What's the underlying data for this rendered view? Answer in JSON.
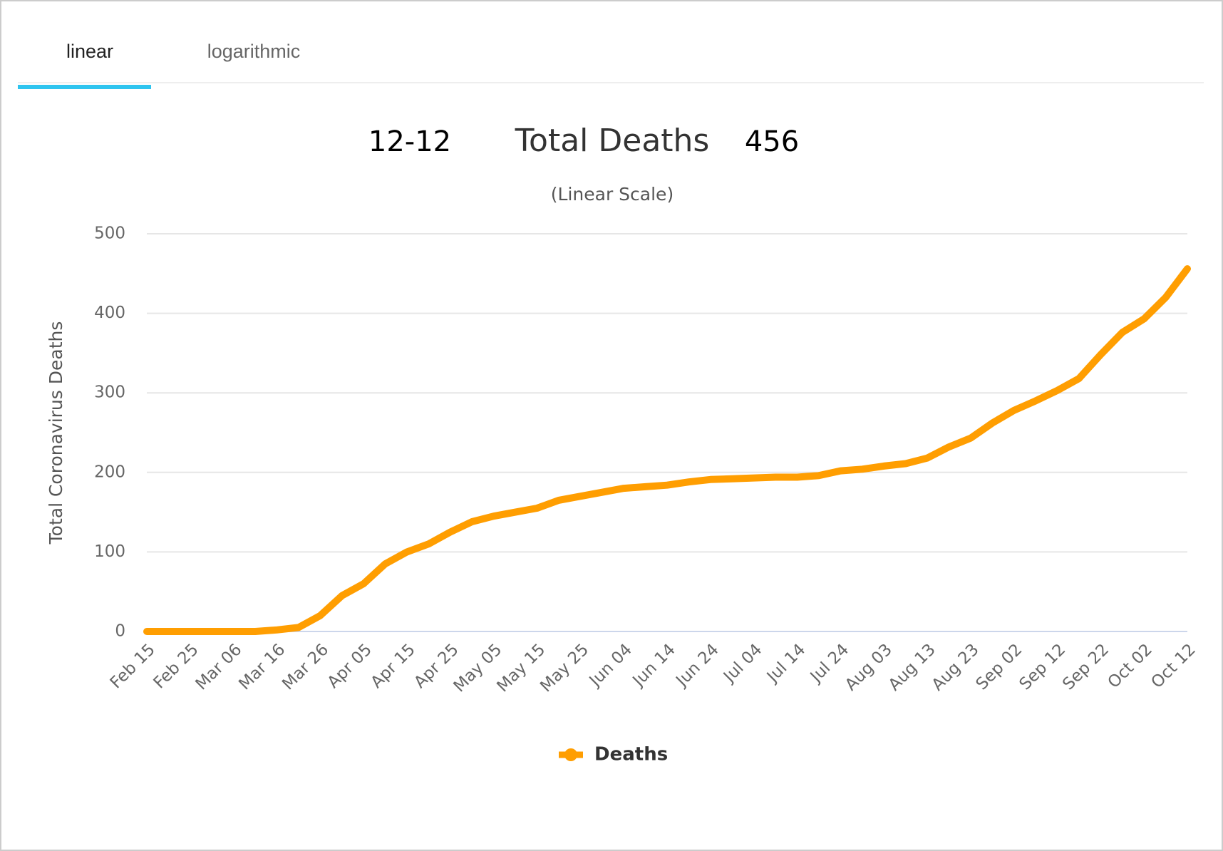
{
  "tabs": [
    "linear",
    "logarithmic"
  ],
  "chart_data": {
    "type": "line",
    "date_label": "12-12",
    "title": "Total Deaths",
    "headline_value": 456,
    "subtitle": "(Linear Scale)",
    "ylabel": "Total Coronavirus Deaths",
    "categories": [
      "Feb 15",
      null,
      "Feb 25",
      null,
      "Mar 06",
      null,
      "Mar 16",
      null,
      "Mar 26",
      null,
      "Apr 05",
      null,
      "Apr 15",
      null,
      "Apr 25",
      null,
      "May 05",
      null,
      "May 15",
      null,
      "May 25",
      null,
      "Jun 04",
      null,
      "Jun 14",
      null,
      "Jun 24",
      null,
      "Jul 04",
      null,
      "Jul 14",
      null,
      "Jul 24",
      null,
      "Aug 03",
      null,
      "Aug 13",
      null,
      "Aug 23",
      null,
      "Sep 02",
      null,
      "Sep 12",
      null,
      "Sep 22",
      null,
      "Oct 02",
      null,
      "Oct 12"
    ],
    "series": [
      {
        "name": "Deaths",
        "color": "#ff9e01",
        "values": [
          0,
          0,
          0,
          0,
          0,
          0,
          2,
          5,
          20,
          45,
          60,
          85,
          100,
          110,
          125,
          138,
          145,
          150,
          155,
          165,
          170,
          175,
          180,
          182,
          184,
          188,
          191,
          192,
          193,
          194,
          194,
          196,
          202,
          204,
          208,
          211,
          218,
          232,
          243,
          262,
          278,
          290,
          303,
          318,
          348,
          376,
          393,
          420,
          456
        ]
      }
    ],
    "ylim": [
      0,
      500
    ],
    "yticks": [
      0,
      100,
      200,
      300,
      400,
      500
    ],
    "grid": true
  }
}
